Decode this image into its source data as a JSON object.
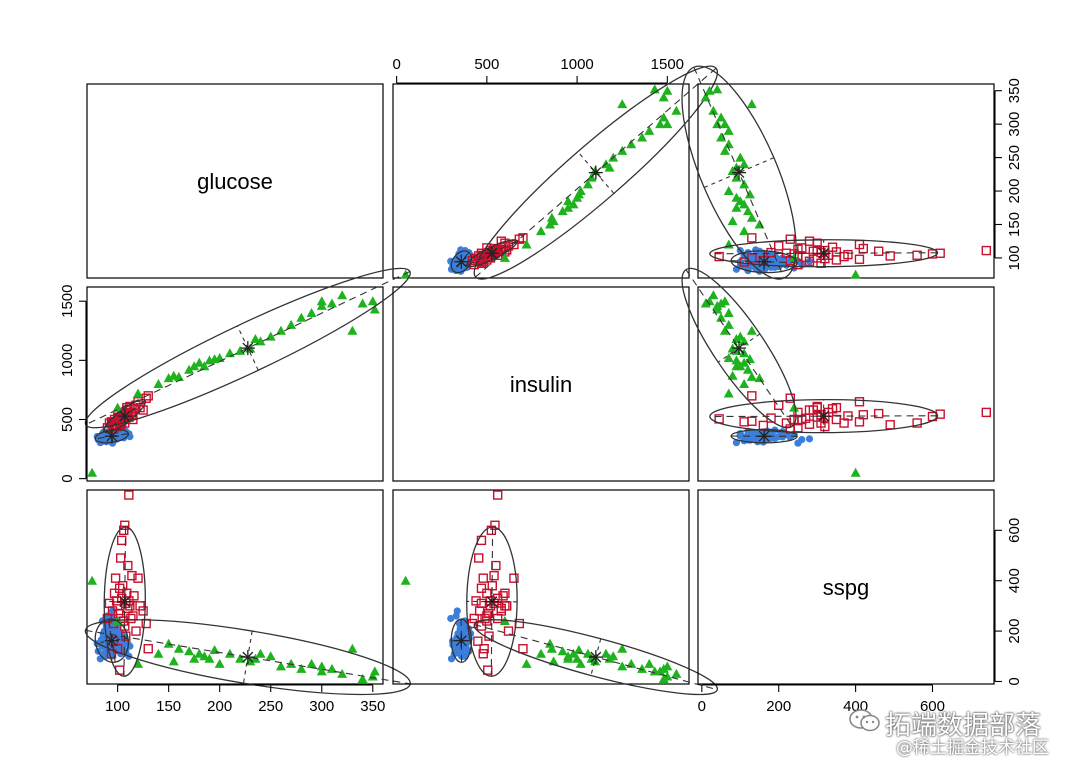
{
  "watermark": {
    "line1": "拓端数据部落",
    "line2": "@稀土掘金技术社区",
    "icon": "wechat-icon"
  },
  "colors": {
    "group1": "#3b7fdb",
    "group2": "#c8102e",
    "group3": "#1fb21f",
    "ellipse": "#333333"
  },
  "chart_data": {
    "type": "scatter",
    "title": "",
    "variables": [
      "glucose",
      "insulin",
      "sspg"
    ],
    "axes": {
      "glucose": {
        "range": [
          70,
          360
        ],
        "ticks": [
          100,
          150,
          200,
          250,
          300,
          350
        ]
      },
      "insulin": {
        "range": [
          -20,
          1620
        ],
        "ticks": [
          0,
          500,
          1000,
          1500
        ]
      },
      "sspg": {
        "range": [
          -10,
          760
        ],
        "ticks": [
          0,
          200,
          400,
          600
        ]
      }
    },
    "series": [
      {
        "marker": "filled-circle",
        "color": "#3b7fdb",
        "mean": [
          91,
          350,
          170
        ],
        "points": [
          [
            80,
            356,
            150
          ],
          [
            81,
            329,
            120
          ],
          [
            83,
            304,
            90
          ],
          [
            84,
            310,
            160
          ],
          [
            85,
            350,
            140
          ],
          [
            85,
            376,
            240
          ],
          [
            86,
            340,
            190
          ],
          [
            86,
            367,
            180
          ],
          [
            87,
            320,
            110
          ],
          [
            87,
            355,
            200
          ],
          [
            88,
            336,
            170
          ],
          [
            88,
            381,
            130
          ],
          [
            89,
            348,
            150
          ],
          [
            89,
            372,
            220
          ],
          [
            90,
            330,
            260
          ],
          [
            90,
            395,
            170
          ],
          [
            90,
            361,
            120
          ],
          [
            91,
            342,
            180
          ],
          [
            91,
            383,
            140
          ],
          [
            92,
            352,
            210
          ],
          [
            92,
            318,
            150
          ],
          [
            93,
            371,
            130
          ],
          [
            93,
            344,
            190
          ],
          [
            94,
            389,
            160
          ],
          [
            94,
            360,
            100
          ],
          [
            95,
            336,
            280
          ],
          [
            95,
            402,
            170
          ],
          [
            96,
            366,
            140
          ],
          [
            96,
            348,
            230
          ],
          [
            97,
            378,
            150
          ],
          [
            97,
            330,
            120
          ],
          [
            98,
            392,
            180
          ],
          [
            98,
            356,
            200
          ],
          [
            99,
            374,
            160
          ],
          [
            100,
            340,
            130
          ],
          [
            100,
            398,
            210
          ],
          [
            101,
            362,
            170
          ],
          [
            102,
            385,
            150
          ],
          [
            103,
            350,
            110
          ],
          [
            104,
            410,
            190
          ],
          [
            105,
            372,
            140
          ],
          [
            106,
            345,
            180
          ],
          [
            107,
            390,
            160
          ],
          [
            108,
            400,
            120
          ],
          [
            110,
            368,
            150
          ],
          [
            111,
            380,
            100
          ],
          [
            112,
            355,
            140
          ],
          [
            95,
            300,
            250
          ],
          [
            92,
            395,
            160
          ],
          [
            88,
            365,
            100
          ],
          [
            89,
            312,
            145
          ],
          [
            99,
            334,
            175
          ],
          [
            102,
            346,
            138
          ],
          [
            90,
            377,
            205
          ],
          [
            86,
            391,
            155
          ],
          [
            93,
            325,
            125
          ],
          [
            97,
            360,
            185
          ],
          [
            84,
            344,
            165
          ],
          [
            101,
            388,
            128
          ],
          [
            94,
            352,
            148
          ]
        ]
      },
      {
        "marker": "open-square",
        "color": "#c8102e",
        "mean": [
          105,
          495,
          325
        ],
        "points": [
          [
            90,
            430,
            250
          ],
          [
            92,
            470,
            310
          ],
          [
            95,
            460,
            280
          ],
          [
            96,
            420,
            230
          ],
          [
            97,
            500,
            350
          ],
          [
            98,
            480,
            410
          ],
          [
            99,
            440,
            320
          ],
          [
            100,
            520,
            300
          ],
          [
            101,
            510,
            270
          ],
          [
            102,
            470,
            370
          ],
          [
            103,
            490,
            250
          ],
          [
            104,
            560,
            330
          ],
          [
            105,
            530,
            380
          ],
          [
            106,
            500,
            240
          ],
          [
            107,
            470,
            220
          ],
          [
            108,
            540,
            310
          ],
          [
            109,
            600,
            350
          ],
          [
            110,
            580,
            290
          ],
          [
            110,
            550,
            460
          ],
          [
            111,
            520,
            320
          ],
          [
            112,
            610,
            300
          ],
          [
            113,
            560,
            250
          ],
          [
            114,
            540,
            420
          ],
          [
            115,
            500,
            260
          ],
          [
            116,
            590,
            340
          ],
          [
            118,
            620,
            200
          ],
          [
            120,
            650,
            410
          ],
          [
            122,
            600,
            300
          ],
          [
            125,
            580,
            280
          ],
          [
            128,
            680,
            230
          ],
          [
            130,
            700,
            130
          ],
          [
            103,
            455,
            490
          ],
          [
            106,
            525,
            600
          ],
          [
            107,
            545,
            620
          ],
          [
            104,
            470,
            560
          ],
          [
            96,
            450,
            160
          ],
          [
            100,
            485,
            130
          ],
          [
            108,
            512,
            180
          ],
          [
            111,
            560,
            740
          ],
          [
            102,
            505,
            45
          ],
          [
            94,
            480,
            110
          ]
        ]
      },
      {
        "marker": "filled-triangle",
        "color": "#1fb21f",
        "mean": [
          219,
          1043,
          96
        ],
        "points": [
          [
            75,
            50,
            400
          ],
          [
            100,
            600,
            240
          ],
          [
            120,
            720,
            70
          ],
          [
            140,
            800,
            110
          ],
          [
            150,
            850,
            150
          ],
          [
            160,
            860,
            130
          ],
          [
            170,
            920,
            120
          ],
          [
            175,
            950,
            90
          ],
          [
            180,
            980,
            110
          ],
          [
            190,
            1000,
            90
          ],
          [
            200,
            1020,
            70
          ],
          [
            210,
            1060,
            110
          ],
          [
            220,
            1080,
            90
          ],
          [
            230,
            1100,
            80
          ],
          [
            240,
            1160,
            110
          ],
          [
            250,
            1200,
            100
          ],
          [
            260,
            1250,
            60
          ],
          [
            270,
            1300,
            70
          ],
          [
            280,
            1360,
            50
          ],
          [
            290,
            1400,
            70
          ],
          [
            300,
            1500,
            60
          ],
          [
            330,
            1250,
            130
          ],
          [
            340,
            1480,
            10
          ],
          [
            350,
            1500,
            20
          ],
          [
            320,
            1550,
            30
          ],
          [
            300,
            1460,
            40
          ],
          [
            352,
            1430,
            40
          ],
          [
            310,
            1480,
            50
          ],
          [
            235,
            1180,
            90
          ],
          [
            185,
            950,
            100
          ],
          [
            155,
            870,
            80
          ],
          [
            195,
            1010,
            125
          ]
        ]
      }
    ],
    "grid": false,
    "legend": "none"
  }
}
